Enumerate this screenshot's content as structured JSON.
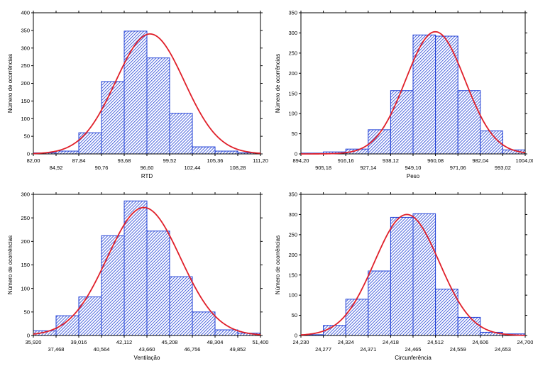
{
  "colors": {
    "bar_fill": "#1f3fd6",
    "bar_stroke": "#1f3fd6",
    "curve": "#e0202a",
    "axis": "#000000"
  },
  "chart_data": [
    {
      "type": "bar",
      "xlabel": "RTD",
      "ylabel": "Número de ocorrências",
      "ylim": [
        0,
        400
      ],
      "yticks": [
        0,
        50,
        100,
        150,
        200,
        250,
        300,
        350,
        400
      ],
      "bin_edges": [
        82.0,
        84.92,
        87.84,
        90.76,
        93.68,
        96.6,
        99.52,
        102.44,
        105.36,
        108.28,
        111.2
      ],
      "xtick_labels": [
        "82,00",
        "84,92",
        "87,84",
        "90,76",
        "93,68",
        "96,60",
        "99,52",
        "102,44",
        "105,36",
        "108,28",
        "111,20"
      ],
      "values": [
        3,
        8,
        60,
        205,
        348,
        272,
        115,
        20,
        8,
        3
      ],
      "curve": {
        "mean": 97.0,
        "sd": 4.4,
        "peak": 340
      }
    },
    {
      "type": "bar",
      "xlabel": "Peso",
      "ylabel": "Número de ocorrências",
      "ylim": [
        0,
        350
      ],
      "yticks": [
        0,
        50,
        100,
        150,
        200,
        250,
        300,
        350
      ],
      "bin_edges": [
        894.2,
        905.18,
        916.16,
        927.14,
        938.12,
        949.1,
        960.08,
        971.06,
        982.04,
        993.02,
        1004.0
      ],
      "xtick_labels": [
        "894,20",
        "905,18",
        "916,16",
        "927,14",
        "938,12",
        "949,10",
        "960,08",
        "971,06",
        "982,04",
        "993,02",
        "1004,00"
      ],
      "values": [
        2,
        5,
        12,
        60,
        157,
        295,
        292,
        157,
        57,
        10
      ],
      "curve": {
        "mean": 960.0,
        "sd": 14.5,
        "peak": 303
      }
    },
    {
      "type": "bar",
      "xlabel": "Ventilação",
      "ylabel": "Número de ocorrências",
      "ylim": [
        0,
        300
      ],
      "yticks": [
        0,
        50,
        100,
        150,
        200,
        250,
        300
      ],
      "bin_edges": [
        35.92,
        37.468,
        39.016,
        40.564,
        42.112,
        43.66,
        45.208,
        46.756,
        48.304,
        49.852,
        51.4
      ],
      "xtick_labels": [
        "35,920",
        "37,468",
        "39,016",
        "40,564",
        "42,112",
        "43,660",
        "45,208",
        "46,756",
        "48,304",
        "49,852",
        "51,400"
      ],
      "values": [
        10,
        42,
        82,
        212,
        286,
        222,
        125,
        50,
        12,
        5
      ],
      "curve": {
        "mean": 43.45,
        "sd": 2.5,
        "peak": 272
      }
    },
    {
      "type": "bar",
      "xlabel": "Circunferência",
      "ylabel": "Número de ocorrências",
      "ylim": [
        0,
        350
      ],
      "yticks": [
        0,
        50,
        100,
        150,
        200,
        250,
        300,
        350
      ],
      "bin_edges": [
        24.23,
        24.277,
        24.324,
        24.371,
        24.418,
        24.465,
        24.512,
        24.559,
        24.606,
        24.653,
        24.7
      ],
      "xtick_labels": [
        "24,230",
        "24,277",
        "24,324",
        "24,371",
        "24,418",
        "24,465",
        "24,512",
        "24,559",
        "24,606",
        "24,653",
        "24,700"
      ],
      "values": [
        2,
        25,
        90,
        160,
        293,
        302,
        115,
        45,
        8,
        4
      ],
      "curve": {
        "mean": 24.452,
        "sd": 0.068,
        "peak": 300
      }
    }
  ]
}
